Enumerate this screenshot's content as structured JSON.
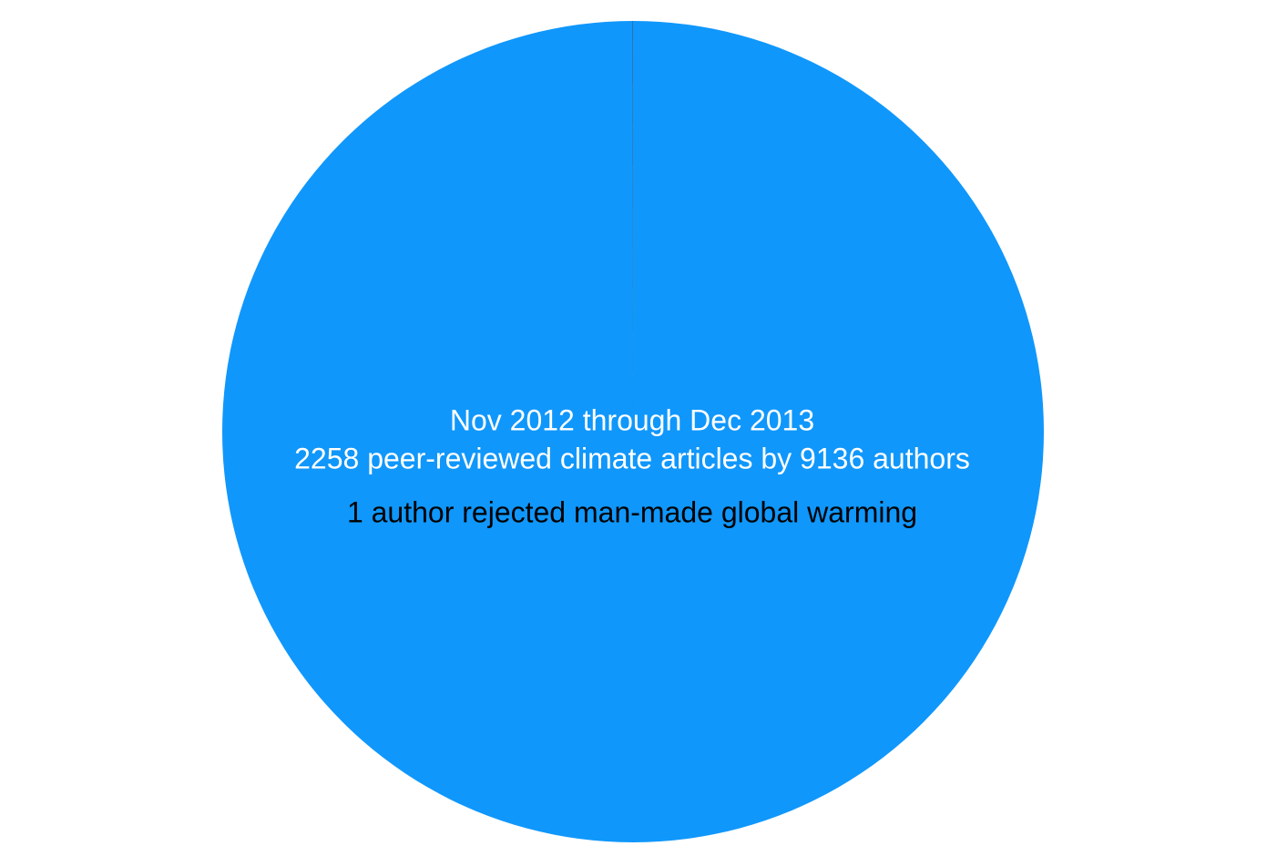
{
  "chart_data": {
    "type": "pie",
    "categories": [
      null,
      null
    ],
    "values": [
      9135,
      1
    ],
    "colors": [
      "#1097fb",
      "#000000"
    ],
    "annotations": [
      "Nov 2012 through Dec 2013",
      "2258 peer-reviewed climate articles by 9136 authors",
      "1 author rejected man-made global warming"
    ]
  }
}
